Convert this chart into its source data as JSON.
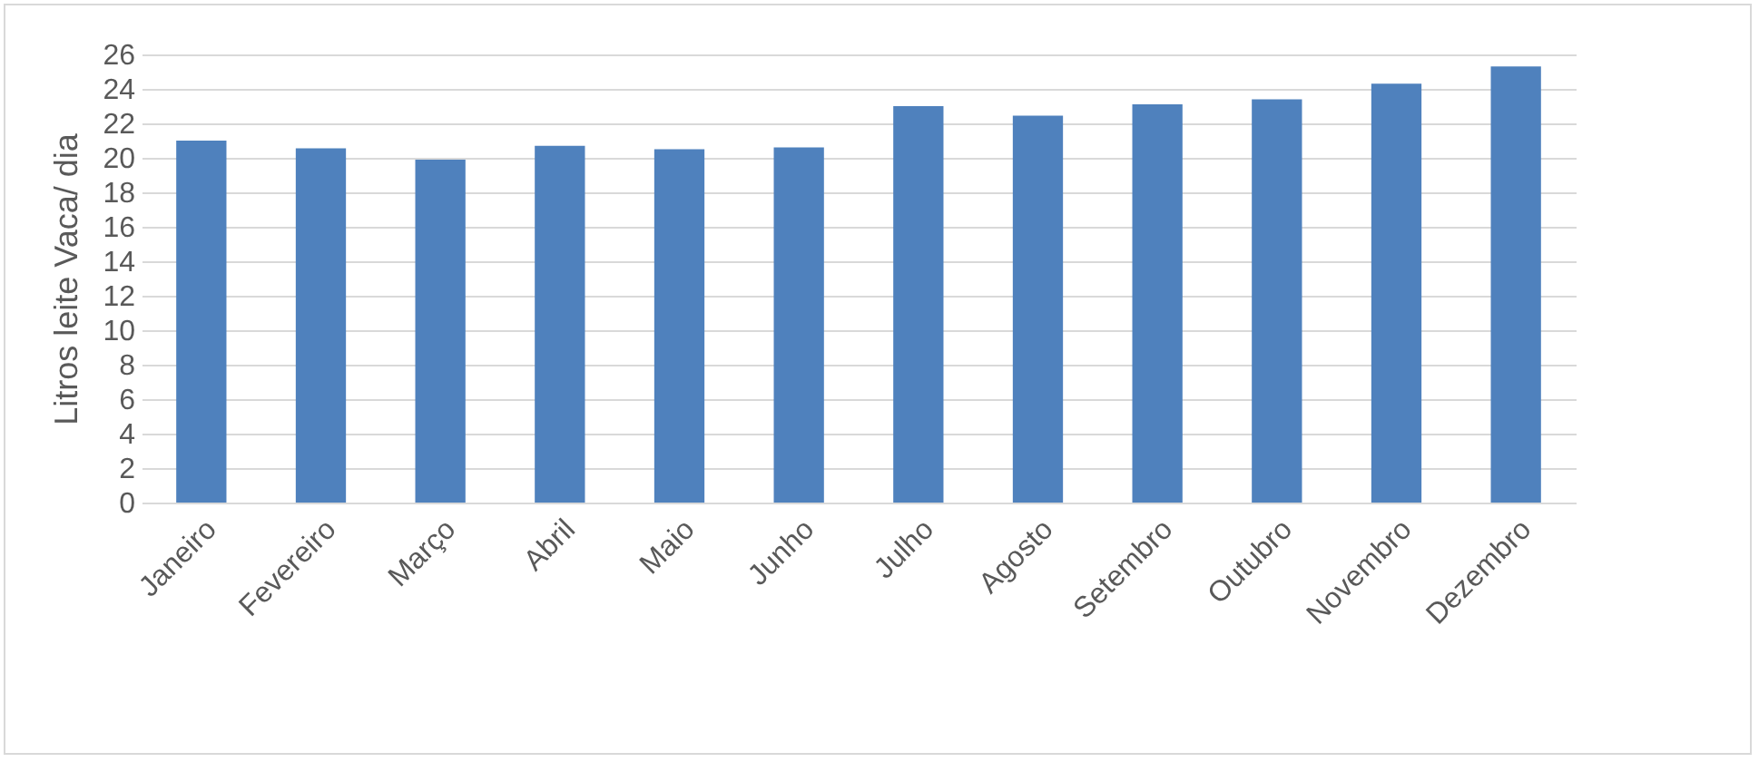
{
  "chart_data": {
    "type": "bar",
    "ylabel": "Litros leite Vaca/ dia",
    "categories": [
      "Janeiro",
      "Fevereiro",
      "Março",
      "Abril",
      "Maio",
      "Junho",
      "Julho",
      "Agosto",
      "Setembro",
      "Outubro",
      "Novembro",
      "Dezembro"
    ],
    "values": [
      21.0,
      20.55,
      19.9,
      20.7,
      20.5,
      20.6,
      23.0,
      22.45,
      23.1,
      23.4,
      24.3,
      25.3
    ],
    "color": "#4f81bd",
    "ylim": [
      0,
      26
    ],
    "yticks": [
      0,
      2,
      4,
      6,
      8,
      10,
      12,
      14,
      16,
      18,
      20,
      22,
      24,
      26
    ],
    "grid": "y"
  }
}
